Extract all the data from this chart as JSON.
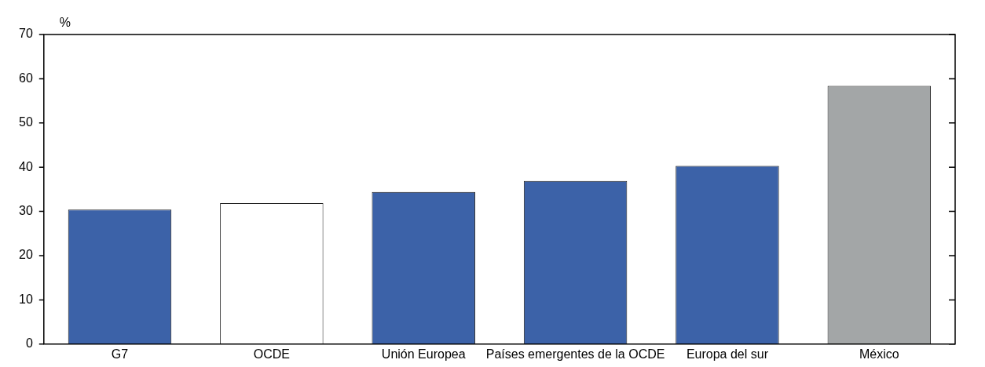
{
  "chart_data": {
    "type": "bar",
    "ylabel": "%",
    "categories": [
      "G7",
      "OCDE",
      "Unión Europea",
      "Países emergentes de la OCDE",
      "Europa del sur",
      "México"
    ],
    "values": [
      30.4,
      31.9,
      34.4,
      36.9,
      40.3,
      58.4
    ],
    "colors": [
      "#3c62a8",
      "#ffffff",
      "#3c62a8",
      "#3c62a8",
      "#3c62a8",
      "#a3a6a7"
    ],
    "ylim": [
      0,
      70
    ],
    "yticks": [
      0,
      10,
      20,
      30,
      40,
      50,
      60,
      70
    ],
    "grid": false,
    "legend": false
  }
}
